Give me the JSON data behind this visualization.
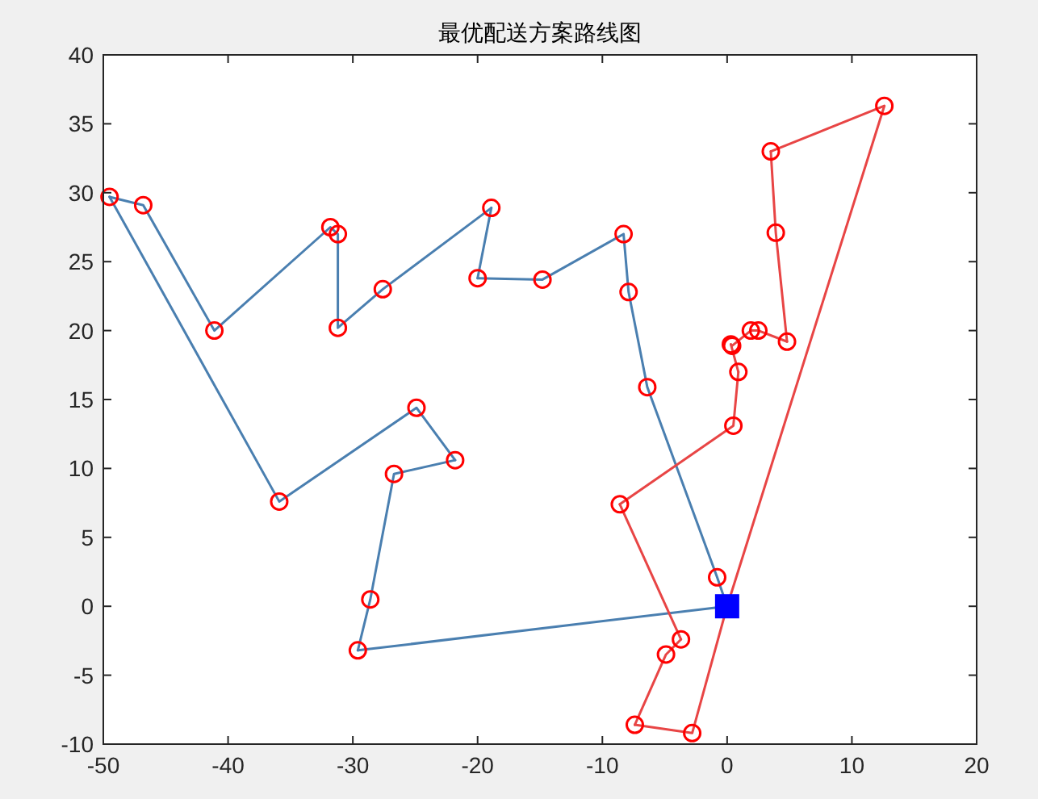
{
  "chart_data": {
    "type": "line",
    "title": "最优配送方案路线图",
    "xlim": [
      -50,
      20
    ],
    "ylim": [
      -10,
      40
    ],
    "xticks": [
      -50,
      -40,
      -30,
      -20,
      -10,
      0,
      10,
      20
    ],
    "yticks": [
      -10,
      -5,
      0,
      5,
      10,
      15,
      20,
      25,
      30,
      35,
      40
    ],
    "grid": false,
    "series": [
      {
        "type": "line",
        "color": "#4a7fb0",
        "marker": "none",
        "x": [
          0,
          -0.8,
          -6.4,
          -7.9,
          -8.3,
          -14.8,
          -20.0
        ],
        "values": [
          0,
          2.1,
          15.9,
          22.8,
          27.0,
          23.7,
          23.8
        ]
      },
      {
        "type": "line",
        "color": "#4a7fb0",
        "marker": "none",
        "x": [
          -20.0,
          -18.9
        ],
        "values": [
          23.8,
          28.9
        ]
      },
      {
        "type": "line",
        "color": "#4a7fb0",
        "marker": "none",
        "x": [
          -18.9,
          -27.6,
          -31.2,
          -31.2,
          -31.8,
          -41.1,
          -46.8,
          -49.5
        ],
        "values": [
          28.9,
          23.0,
          20.2,
          27.0,
          27.5,
          20.0,
          29.1,
          29.7
        ]
      },
      {
        "type": "line",
        "color": "#4a7fb0",
        "marker": "none",
        "x": [
          -49.5,
          -35.9,
          -24.9,
          -21.8
        ],
        "values": [
          29.7,
          7.6,
          14.4,
          10.6
        ]
      },
      {
        "type": "line",
        "color": "#4a7fb0",
        "marker": "none",
        "x": [
          -21.8,
          -26.7,
          -28.6,
          -29.6
        ],
        "values": [
          10.6,
          9.6,
          0.5,
          -3.2
        ]
      },
      {
        "type": "line",
        "color": "#4a7fb0",
        "marker": "none",
        "x": [
          -29.6,
          0
        ],
        "values": [
          -3.2,
          0
        ]
      },
      {
        "type": "line",
        "color": "#e84545",
        "marker": "none",
        "x": [
          0,
          12.6
        ],
        "values": [
          0,
          36.3
        ]
      },
      {
        "type": "line",
        "color": "#e84545",
        "marker": "none",
        "x": [
          12.6,
          3.5
        ],
        "values": [
          36.3,
          33.0
        ]
      },
      {
        "type": "line",
        "color": "#e84545",
        "marker": "none",
        "x": [
          3.5,
          3.9,
          4.8
        ],
        "values": [
          33.0,
          27.1,
          19.2
        ]
      },
      {
        "type": "line",
        "color": "#e84545",
        "marker": "none",
        "x": [
          4.8,
          2.5,
          1.9,
          0.4,
          0.3
        ],
        "values": [
          19.2,
          20.0,
          20.0,
          18.9,
          19.0
        ]
      },
      {
        "type": "line",
        "color": "#e84545",
        "marker": "none",
        "x": [
          0.3,
          0.9
        ],
        "values": [
          19.0,
          17.0
        ]
      },
      {
        "type": "line",
        "color": "#e84545",
        "marker": "none",
        "x": [
          0.9,
          0.5,
          -8.6
        ],
        "values": [
          17.0,
          13.1,
          7.4
        ]
      },
      {
        "type": "line",
        "color": "#e84545",
        "marker": "none",
        "x": [
          -8.6,
          -3.7
        ],
        "values": [
          7.4,
          -2.4
        ]
      },
      {
        "type": "line",
        "color": "#e84545",
        "marker": "none",
        "x": [
          -3.7,
          -4.9,
          -7.4
        ],
        "values": [
          -2.4,
          -3.5,
          -8.6
        ]
      },
      {
        "type": "line",
        "color": "#e84545",
        "marker": "none",
        "x": [
          -7.4,
          -2.8,
          0
        ],
        "values": [
          -8.6,
          -9.2,
          0
        ]
      },
      {
        "type": "scatter",
        "color": "#ff0000",
        "marker": "circle",
        "x": [
          -0.8,
          -6.4,
          -7.9,
          -8.3,
          -14.8,
          -20.0,
          -18.9,
          -27.6,
          -31.2,
          -31.2,
          -31.8,
          -41.1,
          -46.8,
          -49.5,
          -35.9,
          -24.9,
          -21.8,
          -26.7,
          -28.6,
          -29.6,
          12.6,
          3.5,
          3.9,
          4.8,
          2.5,
          1.9,
          0.4,
          0.3,
          0.9,
          0.5,
          -8.6,
          -3.7,
          -4.9,
          -7.4,
          -2.8
        ],
        "values": [
          2.1,
          15.9,
          22.8,
          27.0,
          23.7,
          23.8,
          28.9,
          23.0,
          20.2,
          27.0,
          27.5,
          20.0,
          29.1,
          29.7,
          7.6,
          14.4,
          10.6,
          9.6,
          0.5,
          -3.2,
          36.3,
          33.0,
          27.1,
          19.2,
          20.0,
          20.0,
          18.9,
          19.0,
          17.0,
          13.1,
          7.4,
          -2.4,
          -3.5,
          -8.6,
          -9.2
        ]
      },
      {
        "type": "scatter",
        "color": "#0000ff",
        "marker": "square",
        "x": [
          0
        ],
        "values": [
          0
        ]
      }
    ]
  }
}
